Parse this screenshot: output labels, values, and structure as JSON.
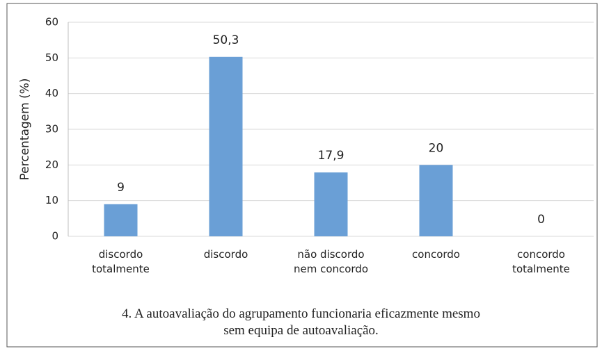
{
  "chart_data": {
    "type": "bar",
    "title": "4. A autoavaliação do agrupamento funcionaria eficazmente mesmo\nsem equipa de autoavaliação.",
    "ylabel": "Percentagem (%)",
    "categories": [
      "discordo\ntotalmente",
      "discordo",
      "não discordo\nnem concordo",
      "concordo",
      "concordo\ntotalmente"
    ],
    "values": [
      9,
      50.3,
      17.9,
      20,
      0
    ],
    "value_labels": [
      "9",
      "50,3",
      "17,9",
      "20",
      "0"
    ],
    "color": "#6a9fd6",
    "ylim": [
      0,
      60
    ],
    "yticks": [
      0,
      10,
      20,
      30,
      40,
      50,
      60
    ],
    "grid": true
  }
}
